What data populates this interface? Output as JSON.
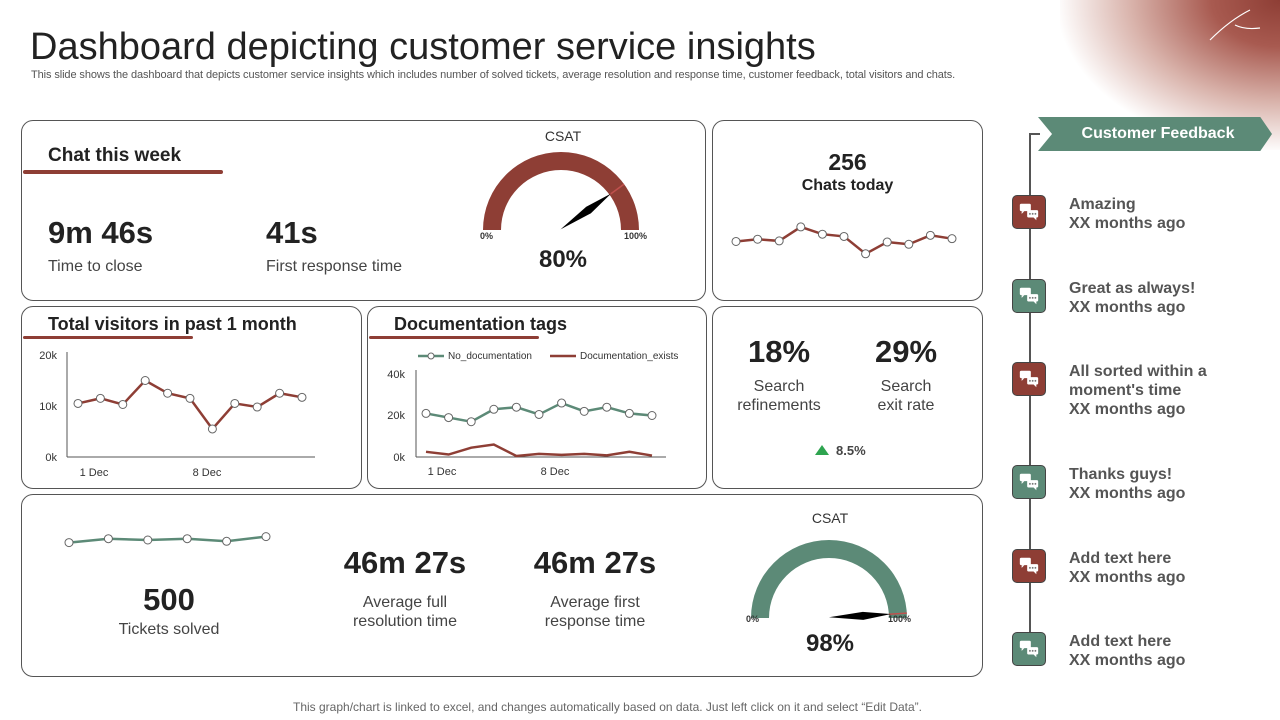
{
  "page": {
    "title": "Dashboard depicting customer service insights",
    "subtitle": "This slide shows the dashboard that depicts customer service insights which includes number of solved tickets, average resolution and response time, customer feedback, total visitors and chats.",
    "footer_note": "This graph/chart is linked to excel, and changes automatically based on data. Just left click on it and select “Edit Data”."
  },
  "colors": {
    "accent_red": "#8e3e35",
    "accent_green": "#5c8a77",
    "text_dark": "#222222"
  },
  "chat_week": {
    "title": "Chat this week",
    "time_to_close": {
      "value": "9m 46s",
      "label": "Time to close"
    },
    "first_response": {
      "value": "41s",
      "label": "First response time"
    }
  },
  "csat_top": {
    "title": "CSAT",
    "value": "80%",
    "min_label": "0%",
    "max_label": "100%",
    "fraction": 0.8
  },
  "chats_today": {
    "count": "256",
    "label": "Chats today"
  },
  "visitors": {
    "title": "Total visitors in past 1 month"
  },
  "doc_tags": {
    "title": "Documentation tags"
  },
  "search": {
    "refinements": {
      "value": "18%",
      "label_line1": "Search",
      "label_line2": "refinements"
    },
    "exit_rate": {
      "value": "29%",
      "label_line1": "Search",
      "label_line2": "exit rate"
    },
    "change": {
      "value": "8.5%",
      "icon": "triangle-up-icon"
    }
  },
  "tickets": {
    "count": "500",
    "label": "Tickets solved",
    "avg_resolution": {
      "value": "46m 27s",
      "label_line1": "Average full",
      "label_line2": "resolution time"
    },
    "avg_response": {
      "value": "46m 27s",
      "label_line1": "Average first",
      "label_line2": "response time"
    }
  },
  "csat_bottom": {
    "title": "CSAT",
    "value": "98%",
    "min_label": "0%",
    "max_label": "100%",
    "fraction": 0.98
  },
  "feedback": {
    "header": "Customer Feedback",
    "items": [
      {
        "text_line1": "Amazing",
        "text_line2": "",
        "time": "XX months ago",
        "color": "red",
        "icon": "chat-bubbles-icon"
      },
      {
        "text_line1": "Great as always!",
        "text_line2": "",
        "time": "XX months ago",
        "color": "green",
        "icon": "chat-bubbles-icon"
      },
      {
        "text_line1": "All sorted within a",
        "text_line2": "moment's time",
        "time": "XX months ago",
        "color": "red",
        "icon": "chat-bubbles-icon"
      },
      {
        "text_line1": "Thanks guys!",
        "text_line2": "",
        "time": "XX months ago",
        "color": "green",
        "icon": "chat-bubbles-icon"
      },
      {
        "text_line1": "Add text here",
        "text_line2": "",
        "time": "XX months ago",
        "color": "red",
        "icon": "chat-bubbles-icon"
      },
      {
        "text_line1": "Add text here",
        "text_line2": "",
        "time": "XX months ago",
        "color": "green",
        "icon": "chat-bubbles-icon"
      }
    ]
  },
  "chart_data": [
    {
      "id": "chats_today",
      "type": "line",
      "title": "",
      "xlabel": "",
      "ylabel": "",
      "ylim": [
        0,
        10
      ],
      "series": [
        {
          "name": "Chats",
          "values": [
            4.2,
            4.6,
            4.3,
            6.8,
            5.5,
            5.1,
            2.0,
            4.1,
            3.7,
            5.3,
            4.7
          ]
        }
      ]
    },
    {
      "id": "total_visitors",
      "type": "line",
      "title": "Total visitors in past 1 month",
      "categories_ticks": [
        "1 Dec",
        "8 Dec"
      ],
      "yticks": [
        "20k",
        "10k",
        "0k"
      ],
      "ylim": [
        0,
        20000
      ],
      "series": [
        {
          "name": "Visitors",
          "values": [
            10500,
            11500,
            10300,
            15000,
            12500,
            11500,
            5500,
            10500,
            9800,
            12500,
            11700
          ]
        }
      ]
    },
    {
      "id": "documentation_tags",
      "type": "line",
      "title": "Documentation tags",
      "categories_ticks": [
        "1 Dec",
        "8 Dec"
      ],
      "yticks": [
        "40k",
        "20k",
        "0k"
      ],
      "ylim": [
        0,
        40000
      ],
      "series": [
        {
          "name": "No_documentation",
          "values": [
            21000,
            19000,
            17000,
            23000,
            24000,
            20500,
            26000,
            22000,
            24000,
            21000,
            20000
          ]
        },
        {
          "name": "Documentation_exists",
          "values": [
            2500,
            1200,
            4500,
            6000,
            500,
            1500,
            1000,
            1500,
            800,
            2500,
            700
          ]
        }
      ]
    },
    {
      "id": "tickets_trend",
      "type": "line",
      "title": "",
      "ylim": [
        0,
        10
      ],
      "series": [
        {
          "name": "Tickets",
          "values": [
            4.0,
            5.5,
            5.0,
            5.5,
            4.5,
            6.3
          ]
        }
      ]
    }
  ]
}
